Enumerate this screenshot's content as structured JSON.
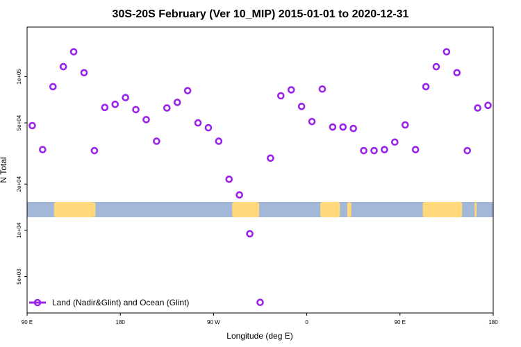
{
  "chart_data": {
    "type": "scatter",
    "title": "30S-20S February (Ver 10_MIP)   2015-01-01 to 2020-12-31",
    "xlabel": "Longitude (deg E)",
    "ylabel": "N Total",
    "x_scale": "linear",
    "y_scale": "log",
    "xlim": [
      90,
      540
    ],
    "ylim": [
      2900,
      210000
    ],
    "x_ticks": [
      {
        "value": 90,
        "label": "90 E"
      },
      {
        "value": 180,
        "label": "180"
      },
      {
        "value": 270,
        "label": "90 W"
      },
      {
        "value": 360,
        "label": "0"
      },
      {
        "value": 450,
        "label": "90 E"
      },
      {
        "value": 540,
        "label": "180"
      }
    ],
    "y_ticks": [
      {
        "value": 5000,
        "label": "5e+03"
      },
      {
        "value": 10000,
        "label": "1e+04"
      },
      {
        "value": 20000,
        "label": "2e+04"
      },
      {
        "value": 50000,
        "label": "5e+04"
      },
      {
        "value": 100000,
        "label": "1e+05"
      }
    ],
    "colors": {
      "marker": "#9a24e8",
      "ocean": "#a3b8d8",
      "land": "#ffd97a"
    },
    "land_spans_lon": [
      [
        116,
        154
      ],
      [
        154,
        156
      ],
      [
        288,
        314
      ],
      [
        373,
        392
      ],
      [
        399,
        403
      ],
      [
        472,
        510
      ],
      [
        522,
        524
      ]
    ],
    "legend": {
      "position": "bottom-left",
      "entries": [
        "Land (Nadir&Glint) and Ocean (Glint)"
      ]
    },
    "series": [
      {
        "name": "Land (Nadir&Glint) and Ocean (Glint)",
        "x": [
          95,
          105,
          115,
          125,
          135,
          145,
          155,
          165,
          175,
          185,
          195,
          205,
          215,
          225,
          235,
          245,
          255,
          265,
          275,
          285,
          295,
          305,
          315,
          325,
          335,
          345,
          355,
          365,
          375,
          385,
          395,
          405,
          415,
          425,
          435,
          445,
          455,
          465,
          475,
          485,
          495,
          505,
          515,
          525,
          535
        ],
        "y": [
          48000,
          33500,
          86000,
          116000,
          145000,
          106000,
          33000,
          63000,
          66000,
          73000,
          61000,
          52500,
          38000,
          62500,
          68000,
          81000,
          50000,
          46500,
          38000,
          21500,
          17000,
          9500,
          3400,
          29500,
          75000,
          82000,
          64000,
          51000,
          83000,
          47000,
          47000,
          46000,
          33000,
          33000,
          33500,
          37500,
          48500,
          33500,
          86000,
          116000,
          145000,
          106000,
          33000,
          62500,
          65000
        ]
      }
    ]
  }
}
